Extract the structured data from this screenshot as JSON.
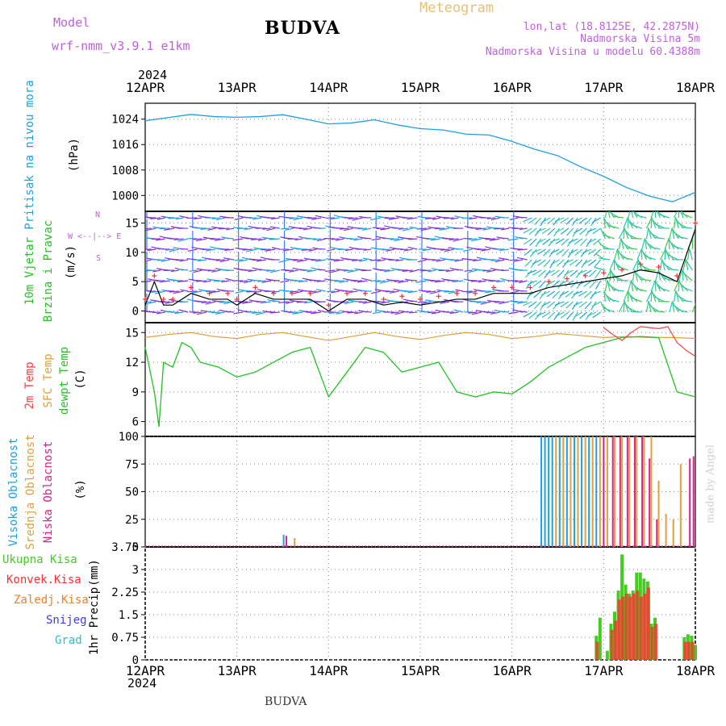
{
  "header": {
    "model_label": "Model",
    "model_name": "wrf-nmm_v3.9.1  e1km",
    "station": "BUDVA",
    "meteogram": "Meteogram",
    "lonlat": "lon,lat (18.8125E, 42.2875N)",
    "altitude": "Nadmorska Visina 5m",
    "model_altitude": "Nadmorska Visina u modelu 60.4388m",
    "year_top": "2024",
    "year_bottom": "2024",
    "footer_station": "BUDVA",
    "credit": "made by Angel"
  },
  "colors": {
    "pressure": "#1ea0e6",
    "wind_speed": "#000000",
    "wind_gust": "#ff3030",
    "temp_2m": "#ff4040",
    "temp_sfc": "#e0a040",
    "dewpoint": "#22c422",
    "cloud_high": "#1ea0e6",
    "cloud_mid": "#e0a040",
    "cloud_low": "#e0208c",
    "precip_total": "#44cc22",
    "precip_conv": "#ff3030",
    "precip_frozen": "#ff7a20",
    "snow": "#3a3aff",
    "hail": "#22c4c4"
  },
  "panel_labels": {
    "pressure": [
      "Pritisak na nivou mora",
      "(hPa)"
    ],
    "wind": [
      "10m Vjetar",
      "Brzina i Pravac",
      "(m/s)"
    ],
    "wind_compass": [
      "N",
      "S",
      "W <--|--> E"
    ],
    "temp": [
      "2m Temp",
      "SFC Temp",
      "dewpt Temp",
      "(C)"
    ],
    "cloud": [
      "Visoka Oblacnost",
      "Srednja Oblacnost",
      "Niska Oblacnost",
      "(%)"
    ],
    "precip_axis": [
      "1hr Precip",
      "(mm)"
    ],
    "precip_legend": [
      "Ukupna Kisa",
      "Konvek.Kisa",
      "Zaledj.Kisa",
      "Snijeg",
      "Grad"
    ]
  },
  "chart_data": [
    {
      "type": "line",
      "title": "Pritisak na nivou mora",
      "ylabel": "(hPa)",
      "x_ticks": [
        "12APR",
        "13APR",
        "14APR",
        "15APR",
        "16APR",
        "17APR",
        "18APR"
      ],
      "y_ticks": [
        "1000",
        "1008",
        "1016",
        "1024"
      ],
      "ylim": [
        995,
        1029
      ],
      "series": [
        {
          "name": "Pritisak na nivou mora",
          "x": [
            0,
            0.25,
            0.5,
            0.75,
            1.0,
            1.25,
            1.5,
            1.75,
            2.0,
            2.25,
            2.5,
            2.75,
            3.0,
            3.25,
            3.5,
            3.75,
            4.0,
            4.25,
            4.5,
            4.75,
            5.0,
            5.25,
            5.5,
            5.75,
            6.0
          ],
          "values": [
            1023.5,
            1024.5,
            1025.5,
            1024.8,
            1024.6,
            1024.8,
            1025.4,
            1024.0,
            1022.5,
            1022.8,
            1023.8,
            1022.2,
            1021.0,
            1020.6,
            1019.3,
            1019.0,
            1017.0,
            1014.5,
            1012.5,
            1009.0,
            1006.0,
            1002.5,
            999.8,
            998.0,
            1001.0
          ]
        }
      ]
    },
    {
      "type": "line",
      "title": "10m Vjetar Brzina i Pravac",
      "ylabel": "(m/s)",
      "y_ticks": [
        "0",
        "5",
        "10",
        "15"
      ],
      "ylim": [
        -2,
        17
      ],
      "series": [
        {
          "name": "10m Vjetar",
          "x": [
            0,
            0.1,
            0.2,
            0.3,
            0.5,
            0.7,
            0.9,
            1.0,
            1.2,
            1.4,
            1.6,
            1.8,
            2.0,
            2.2,
            2.4,
            2.6,
            2.8,
            3.0,
            3.2,
            3.4,
            3.6,
            3.8,
            4.0,
            4.2,
            4.4,
            4.6,
            4.8,
            5.0,
            5.2,
            5.4,
            5.6,
            5.8,
            6.0
          ],
          "values": [
            1,
            5,
            1,
            1,
            3,
            2,
            2,
            1,
            3,
            2,
            2,
            2,
            0,
            2,
            2,
            1,
            1.5,
            1,
            1.5,
            2,
            2,
            3,
            3,
            3,
            4,
            4.5,
            5,
            5.5,
            6,
            7,
            6.5,
            5,
            14
          ]
        }
      ]
    },
    {
      "type": "line",
      "title": "2m Temp / SFC Temp / dewpt Temp",
      "ylabel": "(C)",
      "y_ticks": [
        "6",
        "9",
        "12",
        "15"
      ],
      "ylim": [
        4.5,
        16
      ],
      "series": [
        {
          "name": "2m Temp",
          "x": [
            5.0,
            5.1,
            5.2,
            5.3,
            5.4,
            5.5,
            5.6,
            5.7,
            5.8,
            5.9,
            6.0
          ],
          "values": [
            15.5,
            14.8,
            14.2,
            15.0,
            15.6,
            15.5,
            15.4,
            15.6,
            14.0,
            13.2,
            12.6
          ]
        },
        {
          "name": "SFC Temp",
          "x": [
            0,
            0.25,
            0.5,
            0.75,
            1.0,
            1.25,
            1.5,
            1.75,
            2.0,
            2.25,
            2.5,
            2.75,
            3.0,
            3.25,
            3.5,
            3.75,
            4.0,
            4.25,
            4.5,
            4.75,
            5.0,
            5.25,
            5.5,
            5.75,
            6.0
          ],
          "values": [
            14.5,
            14.8,
            15.0,
            14.6,
            14.4,
            14.8,
            15.0,
            14.6,
            14.2,
            14.6,
            15.0,
            14.6,
            14.3,
            14.7,
            15.0,
            14.8,
            14.4,
            14.6,
            14.9,
            14.7,
            14.5,
            14.6,
            14.5,
            14.5,
            14.4
          ]
        },
        {
          "name": "dewpt Temp",
          "x": [
            0,
            0.1,
            0.15,
            0.2,
            0.3,
            0.4,
            0.5,
            0.6,
            0.8,
            1.0,
            1.2,
            1.4,
            1.6,
            1.8,
            2.0,
            2.2,
            2.4,
            2.6,
            2.8,
            3.0,
            3.2,
            3.4,
            3.6,
            3.8,
            4.0,
            4.2,
            4.4,
            4.6,
            4.8,
            5.0,
            5.2,
            5.4,
            5.6,
            5.8,
            6.0
          ],
          "values": [
            13.5,
            9,
            5.5,
            12,
            11.5,
            14,
            13.5,
            12,
            11.5,
            10.5,
            11,
            12,
            13,
            13.5,
            8.5,
            11,
            13.5,
            13,
            11,
            11.5,
            12,
            9,
            8.5,
            9,
            8.8,
            10,
            11.5,
            12.5,
            13.5,
            14,
            14.5,
            14.6,
            14.5,
            9,
            8.5
          ]
        }
      ]
    },
    {
      "type": "bar",
      "title": "Visoka / Srednja / Niska Oblacnost",
      "ylabel": "(%)",
      "y_ticks": [
        "0",
        "25",
        "50",
        "75",
        "100"
      ],
      "ylim": [
        0,
        100
      ],
      "series": [
        {
          "name": "Visoka Oblacnost",
          "x": [
            1.51,
            4.32,
            4.36,
            4.4,
            4.44,
            4.52,
            4.6,
            4.68,
            4.76,
            4.84,
            4.92
          ],
          "values": [
            11,
            100,
            100,
            100,
            100,
            100,
            100,
            100,
            100,
            100,
            100
          ]
        },
        {
          "name": "Srednja Oblacnost",
          "x": [
            1.63,
            4.48,
            4.56,
            4.64,
            4.72,
            4.8,
            4.88,
            4.96,
            5.04,
            5.12,
            5.2,
            5.28,
            5.36,
            5.44,
            5.52,
            5.6,
            5.68,
            5.76,
            5.84
          ],
          "values": [
            8,
            100,
            100,
            100,
            100,
            100,
            100,
            100,
            100,
            100,
            100,
            100,
            100,
            100,
            100,
            60,
            30,
            25,
            75
          ]
        },
        {
          "name": "Niska Oblacnost",
          "x": [
            1.54,
            5.0,
            5.1,
            5.18,
            5.26,
            5.34,
            5.42,
            5.5,
            5.58,
            5.94,
            5.98
          ],
          "values": [
            10,
            100,
            100,
            100,
            100,
            100,
            100,
            80,
            25,
            80,
            82
          ]
        }
      ]
    },
    {
      "type": "bar",
      "title": "1hr Precip",
      "ylabel": "(mm)",
      "y_ticks": [
        "0",
        "0.75",
        "1.5",
        "2.25",
        "3",
        "3.75"
      ],
      "ylim": [
        0,
        3.75
      ],
      "series": [
        {
          "name": "Ukupna Kisa",
          "x": [
            4.92,
            4.96,
            5.04,
            5.08,
            5.12,
            5.16,
            5.2,
            5.24,
            5.28,
            5.32,
            5.36,
            5.4,
            5.44,
            5.48,
            5.52,
            5.56,
            5.88,
            5.92,
            5.96,
            6.0
          ],
          "values": [
            0.8,
            1.4,
            0.3,
            1.2,
            1.6,
            2.3,
            3.5,
            2.5,
            2.2,
            2.3,
            2.9,
            2.9,
            2.7,
            2.6,
            1.2,
            1.4,
            0.75,
            0.85,
            0.8,
            0.5
          ]
        },
        {
          "name": "Konvek.Kisa",
          "x": [
            4.93,
            5.09,
            5.13,
            5.17,
            5.21,
            5.25,
            5.29,
            5.33,
            5.37,
            5.41,
            5.45,
            5.49,
            5.53,
            5.57,
            5.89,
            5.93,
            5.97
          ],
          "values": [
            0.6,
            1.0,
            1.3,
            2.0,
            2.1,
            2.2,
            2.1,
            2.2,
            2.3,
            2.1,
            2.2,
            2.4,
            1.1,
            1.2,
            0.6,
            0.6,
            0.6
          ]
        }
      ]
    }
  ]
}
